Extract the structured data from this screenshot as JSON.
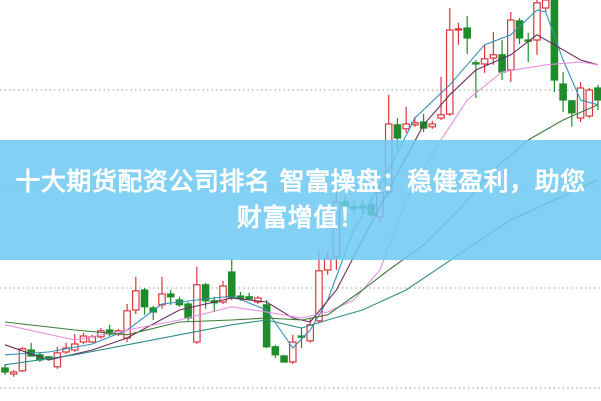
{
  "banner": {
    "line1": "十大期货配资公司排名 智富操盘：稳健盈利，助您",
    "line2": "财富增值！"
  },
  "chart_data": {
    "type": "candlestick",
    "title": "",
    "xlabel": "",
    "ylabel": "",
    "ylim": [
      0,
      100
    ],
    "grid": "horizontal-dotted",
    "gridlines": [
      3,
      28,
      53,
      77.5
    ],
    "colors": {
      "up": "#d9363e",
      "down": "#1e8c2a",
      "banner": "#6ec8f2"
    },
    "candles": [
      [
        8.0,
        7.0,
        9.0,
        6.3
      ],
      [
        6.5,
        7.0,
        7.5,
        5.8
      ],
      [
        7.3,
        12.8,
        13.3,
        7.0
      ],
      [
        12.5,
        11.0,
        14.3,
        10.8
      ],
      [
        11.3,
        10.0,
        11.8,
        9.5
      ],
      [
        10.8,
        10.3,
        11.0,
        10.0
      ],
      [
        8.3,
        11.8,
        13.3,
        7.8
      ],
      [
        12.0,
        13.0,
        14.3,
        11.5
      ],
      [
        12.5,
        14.0,
        16.5,
        12.0
      ],
      [
        14.5,
        16.0,
        16.8,
        14.0
      ],
      [
        14.5,
        15.8,
        16.3,
        14.3
      ],
      [
        15.8,
        17.3,
        18.0,
        15.3
      ],
      [
        17.5,
        16.5,
        18.8,
        16.0
      ],
      [
        16.5,
        17.3,
        17.8,
        16.0
      ],
      [
        15.5,
        22.3,
        24.0,
        14.5
      ],
      [
        22.5,
        27.3,
        30.8,
        21.5
      ],
      [
        27.5,
        23.3,
        28.0,
        21.3
      ],
      [
        23.0,
        22.0,
        23.5,
        20.0
      ],
      [
        23.8,
        26.5,
        30.8,
        22.8
      ],
      [
        26.5,
        25.8,
        27.5,
        23.8
      ],
      [
        25.0,
        23.8,
        25.8,
        23.3
      ],
      [
        24.0,
        20.5,
        24.5,
        19.8
      ],
      [
        14.5,
        28.8,
        33.3,
        14.0
      ],
      [
        28.8,
        24.8,
        29.3,
        22.8
      ],
      [
        24.8,
        24.3,
        25.8,
        22.0
      ],
      [
        24.5,
        28.5,
        29.8,
        24.0
      ],
      [
        32.0,
        25.5,
        35.5,
        25.0
      ],
      [
        26.0,
        25.3,
        27.0,
        24.8
      ],
      [
        25.8,
        25.3,
        26.8,
        25.0
      ],
      [
        24.5,
        25.5,
        26.0,
        24.0
      ],
      [
        23.8,
        13.3,
        25.0,
        13.0
      ],
      [
        13.3,
        11.3,
        13.8,
        10.5
      ],
      [
        11.0,
        9.5,
        11.3,
        9.3
      ],
      [
        9.5,
        14.5,
        16.3,
        9.0
      ],
      [
        16.0,
        15.8,
        18.0,
        13.0
      ],
      [
        14.8,
        18.8,
        20.5,
        14.3
      ],
      [
        19.8,
        32.3,
        37.5,
        19.3
      ],
      [
        32.5,
        35.5,
        37.0,
        31.3
      ],
      [
        35.8,
        49.5,
        52.5,
        32.5
      ],
      [
        49.5,
        48.5,
        51.0,
        47.0
      ],
      [
        48.3,
        47.8,
        50.3,
        46.3
      ],
      [
        48.5,
        48.0,
        50.0,
        46.5
      ],
      [
        48.8,
        46.3,
        51.0,
        45.5
      ],
      [
        45.8,
        51.8,
        53.8,
        44.5
      ],
      [
        52.0,
        69.0,
        76.3,
        50.5
      ],
      [
        68.8,
        65.5,
        70.5,
        62.5
      ],
      [
        67.8,
        69.0,
        73.3,
        66.8
      ],
      [
        68.8,
        69.3,
        70.8,
        68.3
      ],
      [
        69.5,
        68.0,
        71.5,
        67.0
      ],
      [
        68.3,
        69.0,
        69.8,
        67.8
      ],
      [
        70.5,
        71.3,
        80.8,
        70.0
      ],
      [
        71.5,
        92.5,
        98.0,
        71.0
      ],
      [
        92.5,
        92.8,
        94.3,
        88.8
      ],
      [
        93.0,
        90.5,
        96.0,
        86.5
      ],
      [
        84.3,
        84.1,
        85.0,
        75.5
      ],
      [
        84.0,
        85.3,
        88.8,
        81.8
      ],
      [
        85.5,
        86.3,
        92.0,
        83.8
      ],
      [
        86.3,
        82.0,
        90.0,
        80.0
      ],
      [
        82.5,
        95.0,
        97.0,
        79.5
      ],
      [
        94.8,
        90.5,
        95.5,
        89.0
      ],
      [
        90.0,
        89.8,
        91.8,
        84.5
      ],
      [
        90.0,
        99.3,
        100,
        86.3
      ],
      [
        98.0,
        100,
        100,
        97.0
      ],
      [
        100,
        80.0,
        100,
        77.0
      ],
      [
        79.0,
        75.0,
        82.0,
        72.0
      ],
      [
        74.8,
        71.8,
        75.0,
        68.3
      ],
      [
        70.5,
        78.0,
        79.5,
        69.5
      ],
      [
        71.0,
        77.5,
        78.0,
        70.5
      ],
      [
        78.0,
        75.0,
        78.8,
        72.5
      ]
    ],
    "candle_fields": [
      "open",
      "close",
      "high",
      "low"
    ],
    "moving_averages": [
      {
        "color": "#3a8fb8",
        "points": [
          [
            0,
            11.3
          ],
          [
            5,
            12
          ],
          [
            10,
            14
          ],
          [
            14,
            17.5
          ],
          [
            18,
            24
          ],
          [
            22,
            25
          ],
          [
            26,
            26
          ],
          [
            30,
            22.5
          ],
          [
            33,
            13
          ],
          [
            35,
            17.5
          ],
          [
            37,
            25
          ],
          [
            40,
            42.5
          ],
          [
            44,
            57.5
          ],
          [
            47,
            70.5
          ],
          [
            51,
            78.8
          ],
          [
            55,
            88.8
          ],
          [
            58,
            91.3
          ],
          [
            61,
            97.5
          ],
          [
            62,
            97
          ],
          [
            64,
            85
          ],
          [
            66,
            75
          ],
          [
            68,
            73.8
          ]
        ]
      },
      {
        "color": "#6b2d5c",
        "points": [
          [
            0,
            13.8
          ],
          [
            5,
            10
          ],
          [
            10,
            12.5
          ],
          [
            14,
            15.5
          ],
          [
            20,
            22.5
          ],
          [
            26,
            25.5
          ],
          [
            30,
            24.5
          ],
          [
            33,
            20.5
          ],
          [
            35,
            19.5
          ],
          [
            38,
            27.5
          ],
          [
            41,
            40
          ],
          [
            44,
            52.5
          ],
          [
            48,
            68.8
          ],
          [
            51,
            76.3
          ],
          [
            54,
            82.5
          ],
          [
            58,
            86.3
          ],
          [
            61,
            91.3
          ],
          [
            63,
            88.8
          ],
          [
            66,
            85
          ],
          [
            68,
            83.8
          ]
        ]
      },
      {
        "color": "#e68fe0",
        "points": [
          [
            0,
            18.8
          ],
          [
            8,
            15
          ],
          [
            14,
            17.5
          ],
          [
            20,
            20
          ],
          [
            26,
            23.3
          ],
          [
            30,
            22
          ],
          [
            34,
            20.5
          ],
          [
            37,
            22
          ],
          [
            40,
            25
          ],
          [
            43,
            32.5
          ],
          [
            46,
            50
          ],
          [
            50,
            65
          ],
          [
            53,
            75
          ],
          [
            57,
            82
          ],
          [
            62,
            83.8
          ],
          [
            66,
            84.5
          ],
          [
            68,
            83.8
          ]
        ]
      },
      {
        "color": "#3d7a3d",
        "points": [
          [
            0,
            19.5
          ],
          [
            8,
            17.5
          ],
          [
            14,
            16.3
          ],
          [
            20,
            19.5
          ],
          [
            26,
            20
          ],
          [
            30,
            20.5
          ],
          [
            34,
            20
          ],
          [
            37,
            21.3
          ],
          [
            41,
            27.5
          ],
          [
            44,
            32.5
          ],
          [
            48,
            38.8
          ],
          [
            52,
            47.5
          ],
          [
            56,
            57.5
          ],
          [
            60,
            65
          ],
          [
            64,
            70
          ],
          [
            68,
            73.8
          ]
        ]
      },
      {
        "color": "#2f8f86",
        "points": [
          [
            0,
            8.8
          ],
          [
            8,
            11.3
          ],
          [
            14,
            13.8
          ],
          [
            20,
            16.3
          ],
          [
            26,
            18.8
          ],
          [
            30,
            20
          ],
          [
            34,
            18
          ],
          [
            37,
            20
          ],
          [
            41,
            22.5
          ],
          [
            46,
            27.5
          ],
          [
            52,
            36.3
          ],
          [
            58,
            45
          ],
          [
            63,
            50
          ],
          [
            68,
            55
          ]
        ]
      }
    ]
  }
}
